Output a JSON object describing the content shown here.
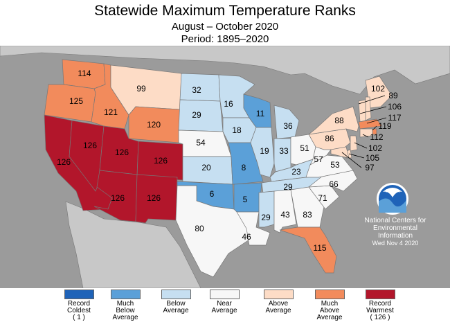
{
  "header": {
    "title": "Statewide Maximum Temperature Ranks",
    "subtitle": "August – October 2020",
    "period": "Period: 1895–2020"
  },
  "colors": {
    "record_coldest": "#1f63b8",
    "much_below": "#5ba0d8",
    "below": "#c6dff1",
    "near": "#f7f7f7",
    "above": "#fddcc6",
    "much_above": "#f28b5c",
    "record_warmest": "#b2162b",
    "background": "#9b9b9b",
    "outside_land": "#c8c8c8"
  },
  "states": [
    {
      "name": "Washington",
      "rank": "114",
      "category": "much_above"
    },
    {
      "name": "Oregon",
      "rank": "125",
      "category": "much_above"
    },
    {
      "name": "California",
      "rank": "126",
      "category": "record_warmest"
    },
    {
      "name": "Nevada",
      "rank": "126",
      "category": "record_warmest"
    },
    {
      "name": "Idaho",
      "rank": "121",
      "category": "much_above"
    },
    {
      "name": "Montana",
      "rank": "99",
      "category": "above"
    },
    {
      "name": "Wyoming",
      "rank": "120",
      "category": "much_above"
    },
    {
      "name": "Utah",
      "rank": "126",
      "category": "record_warmest"
    },
    {
      "name": "Colorado",
      "rank": "126",
      "category": "record_warmest"
    },
    {
      "name": "Arizona",
      "rank": "126",
      "category": "record_warmest"
    },
    {
      "name": "New Mexico",
      "rank": "126",
      "category": "record_warmest"
    },
    {
      "name": "North Dakota",
      "rank": "32",
      "category": "below"
    },
    {
      "name": "South Dakota",
      "rank": "29",
      "category": "below"
    },
    {
      "name": "Nebraska",
      "rank": "54",
      "category": "near"
    },
    {
      "name": "Kansas",
      "rank": "20",
      "category": "below"
    },
    {
      "name": "Oklahoma",
      "rank": "6",
      "category": "much_below"
    },
    {
      "name": "Texas",
      "rank": "80",
      "category": "near"
    },
    {
      "name": "Minnesota",
      "rank": "16",
      "category": "below"
    },
    {
      "name": "Iowa",
      "rank": "18",
      "category": "below"
    },
    {
      "name": "Missouri",
      "rank": "8",
      "category": "much_below"
    },
    {
      "name": "Arkansas",
      "rank": "5",
      "category": "much_below"
    },
    {
      "name": "Louisiana",
      "rank": "46",
      "category": "near"
    },
    {
      "name": "Wisconsin",
      "rank": "11",
      "category": "much_below"
    },
    {
      "name": "Illinois",
      "rank": "19",
      "category": "below"
    },
    {
      "name": "Michigan",
      "rank": "36",
      "category": "below"
    },
    {
      "name": "Indiana",
      "rank": "33",
      "category": "below"
    },
    {
      "name": "Ohio",
      "rank": "51",
      "category": "near"
    },
    {
      "name": "Kentucky",
      "rank": "23",
      "category": "below"
    },
    {
      "name": "Tennessee",
      "rank": "29",
      "category": "below"
    },
    {
      "name": "Mississippi",
      "rank": "29",
      "category": "below"
    },
    {
      "name": "Alabama",
      "rank": "43",
      "category": "near"
    },
    {
      "name": "Georgia",
      "rank": "83",
      "category": "near"
    },
    {
      "name": "Florida",
      "rank": "115",
      "category": "much_above"
    },
    {
      "name": "South Carolina",
      "rank": "71",
      "category": "near"
    },
    {
      "name": "North Carolina",
      "rank": "66",
      "category": "near"
    },
    {
      "name": "Virginia",
      "rank": "53",
      "category": "near"
    },
    {
      "name": "West Virginia",
      "rank": "57",
      "category": "near"
    },
    {
      "name": "Pennsylvania",
      "rank": "86",
      "category": "above"
    },
    {
      "name": "New York",
      "rank": "88",
      "category": "above"
    },
    {
      "name": "Maine",
      "rank": "102",
      "category": "above"
    },
    {
      "name": "New Hampshire",
      "rank": "89",
      "category": "above"
    },
    {
      "name": "Vermont",
      "rank": "106",
      "category": "above"
    },
    {
      "name": "Massachusetts",
      "rank": "117",
      "category": "much_above"
    },
    {
      "name": "Rhode Island",
      "rank": "119",
      "category": "much_above"
    },
    {
      "name": "Connecticut",
      "rank": "112",
      "category": "above"
    },
    {
      "name": "New Jersey",
      "rank": "102",
      "category": "above"
    },
    {
      "name": "Delaware",
      "rank": "105",
      "category": "above"
    },
    {
      "name": "Maryland",
      "rank": "97",
      "category": "above"
    }
  ],
  "credit": {
    "line1": "National Centers for",
    "line2": "Environmental",
    "line3": "Information",
    "date": "Wed Nov  4 2020"
  },
  "logo": {
    "icon": "noaa-logo",
    "text": "NOAA"
  },
  "legend": [
    {
      "category": "record_coldest",
      "label": "Record\nColdest\n( 1 )"
    },
    {
      "category": "much_below",
      "label": "Much\nBelow\nAverage"
    },
    {
      "category": "below",
      "label": "Below\nAverage"
    },
    {
      "category": "near",
      "label": "Near\nAverage"
    },
    {
      "category": "above",
      "label": "Above\nAverage"
    },
    {
      "category": "much_above",
      "label": "Much\nAbove\nAverage"
    },
    {
      "category": "record_warmest",
      "label": "Record\nWarmest\n( 126 )"
    }
  ]
}
